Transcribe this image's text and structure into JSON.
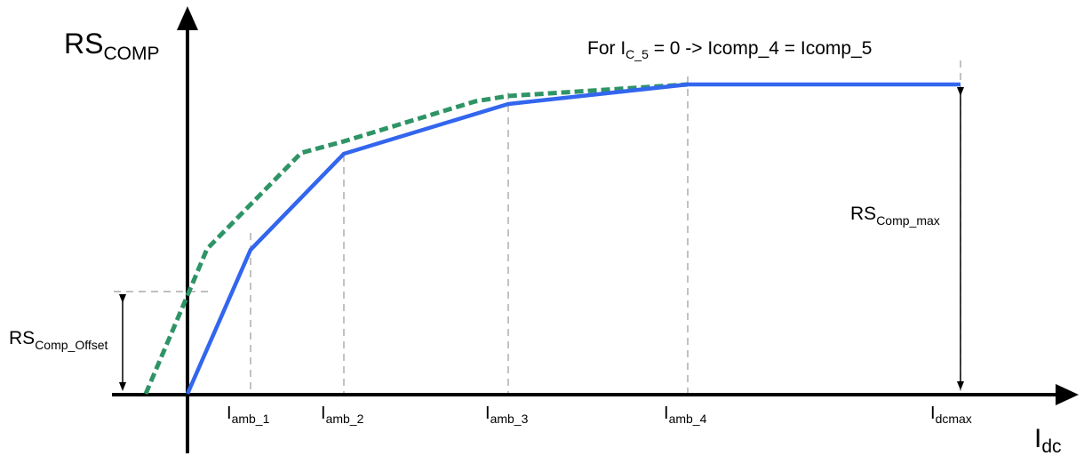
{
  "y_axis": {
    "label_main": "RS",
    "label_sub": "COMP"
  },
  "x_axis": {
    "label_main": "I",
    "label_sub": "dc"
  },
  "note": {
    "prefix": "For  I",
    "sub": "C_5",
    "suffix": " = 0  ->  Icomp_4 = Icomp_5"
  },
  "annotations": {
    "rs_max": {
      "main": "RS",
      "sub": "Comp_max"
    },
    "rs_offset": {
      "main": "RS",
      "sub": "Comp_Offset"
    }
  },
  "x_ticks": [
    {
      "main": "I",
      "sub": "amb_1"
    },
    {
      "main": "I",
      "sub": "amb_2"
    },
    {
      "main": "I",
      "sub": "amb_3"
    },
    {
      "main": "I",
      "sub": "amb_4"
    },
    {
      "main": "I",
      "sub": "dcmax"
    }
  ],
  "curves": {
    "solid": {
      "color": "#3366ee",
      "style": "solid"
    },
    "dotted": {
      "color": "#2e9466",
      "style": "dashed"
    }
  }
}
